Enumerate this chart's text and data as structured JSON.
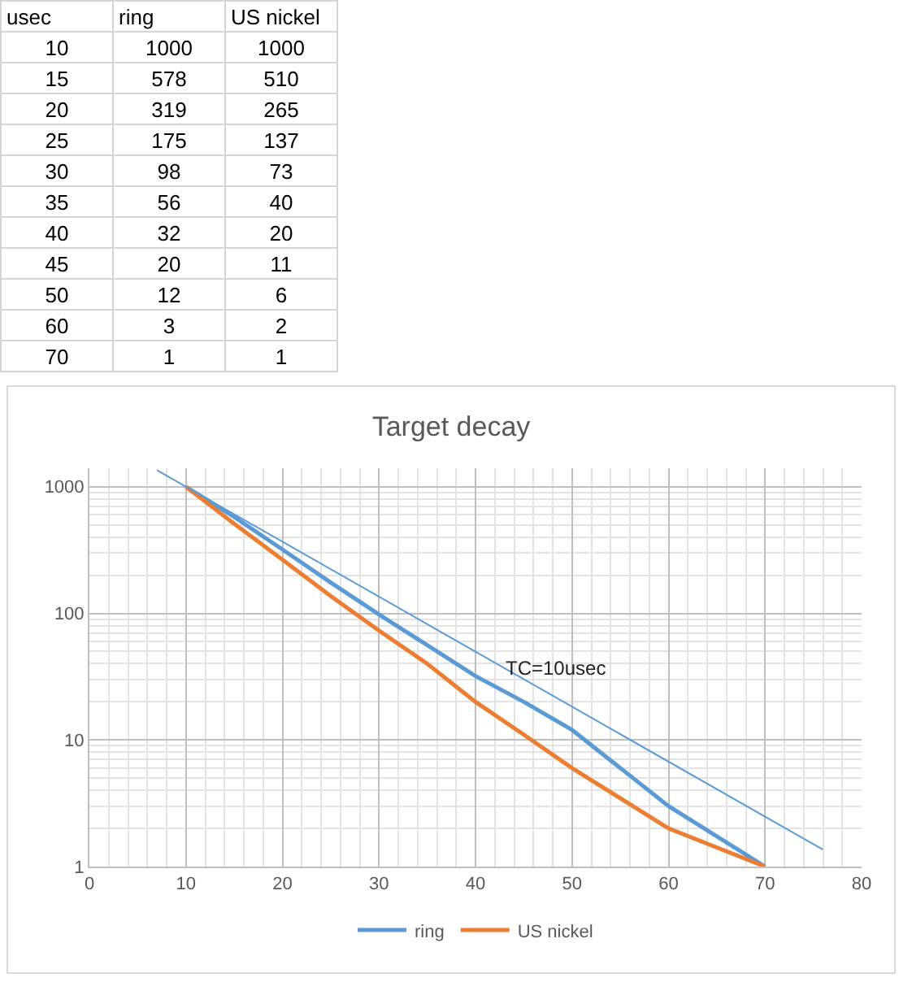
{
  "chart_data": [
    {
      "type": "heatmap",
      "ylabel": "usec",
      "data_labels": true,
      "categories": [
        "ring",
        "US nickel"
      ],
      "y_categories": [
        "10",
        "15",
        "20",
        "25",
        "30",
        "35",
        "40",
        "45",
        "50",
        "60",
        "70"
      ],
      "cells": [
        [
          1000,
          1000
        ],
        [
          578,
          510
        ],
        [
          319,
          265
        ],
        [
          175,
          137
        ],
        [
          98,
          73
        ],
        [
          56,
          40
        ],
        [
          32,
          20
        ],
        [
          20,
          11
        ],
        [
          12,
          6
        ],
        [
          3,
          2
        ],
        [
          1,
          1
        ]
      ]
    },
    {
      "type": "line",
      "title": "Target decay",
      "x": [
        10,
        15,
        20,
        25,
        30,
        35,
        40,
        45,
        50,
        60,
        70
      ],
      "series": [
        {
          "name": "ring",
          "color": "#5b9bd5",
          "values": [
            1000,
            578,
            319,
            175,
            98,
            56,
            32,
            20,
            12,
            3,
            1
          ]
        },
        {
          "name": "US nickel",
          "color": "#ed7d31",
          "values": [
            1000,
            510,
            265,
            137,
            73,
            40,
            20,
            11,
            6,
            2,
            1
          ]
        },
        {
          "name": "TC=10usec",
          "color": "#5b9bd5",
          "x": [
            7,
            76
          ],
          "values": [
            1350,
            1.36
          ]
        }
      ],
      "xlim": [
        0,
        80
      ],
      "xticks": [
        0,
        10,
        20,
        30,
        40,
        50,
        60,
        70,
        80
      ],
      "ylim": [
        1,
        1400
      ],
      "yticks": [
        1,
        10,
        100,
        1000
      ],
      "log": "y",
      "grid": true,
      "legend": "bottom",
      "marker": "none",
      "line_style": "solid"
    }
  ]
}
